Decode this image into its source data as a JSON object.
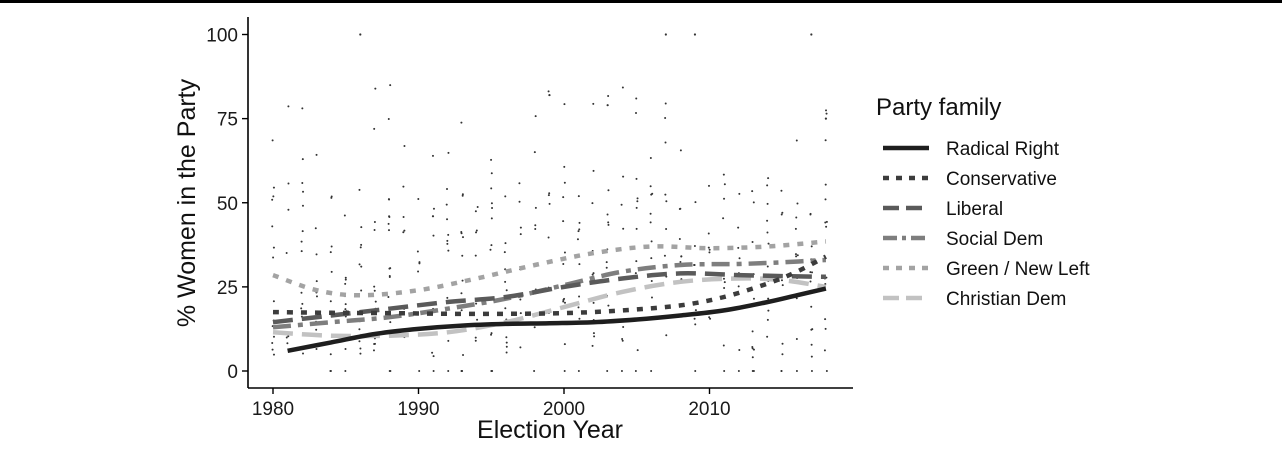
{
  "chart_data": {
    "type": "line",
    "title": "",
    "xlabel": "Election Year",
    "ylabel": "% Women in the Party",
    "xlim": [
      1977.8,
      1820.2
    ],
    "ylim": [
      -5,
      105
    ],
    "x_ticks": [
      1980,
      1990,
      2000,
      2010
    ],
    "y_ticks": [
      0,
      25,
      50,
      75,
      100
    ],
    "grid": false,
    "legend": {
      "title": "Party family",
      "placement": "right"
    },
    "series": [
      {
        "name": "Radical Right",
        "color": "#1e1e1e",
        "style": "solid",
        "x": [
          1981,
          1984,
          1987,
          1990,
          1993,
          1996,
          1999,
          2002,
          2005,
          2008,
          2011,
          2014,
          2016,
          2018
        ],
        "y": [
          6,
          8.5,
          11,
          12.5,
          13.5,
          14,
          14.2,
          14.5,
          15.3,
          16.5,
          18,
          20.5,
          22.5,
          24.5
        ]
      },
      {
        "name": "Conservative",
        "color": "#3c3c3c",
        "style": "dotted",
        "x": [
          1980,
          1984,
          1988,
          1992,
          1996,
          2000,
          2004,
          2008,
          2011,
          2014,
          2016,
          2018
        ],
        "y": [
          17.5,
          17.3,
          17.2,
          17,
          17,
          17.2,
          18,
          19.5,
          22,
          26,
          29.5,
          34
        ]
      },
      {
        "name": "Liberal",
        "color": "#5a5a5a",
        "style": "longdash",
        "x": [
          1980,
          1984,
          1988,
          1992,
          1996,
          2000,
          2004,
          2008,
          2012,
          2015,
          2018
        ],
        "y": [
          14.5,
          16.5,
          18.5,
          20.5,
          22,
          25,
          27.5,
          29,
          28.5,
          28.2,
          28
        ]
      },
      {
        "name": "Social Dem",
        "color": "#7e7e7e",
        "style": "dashdot",
        "x": [
          1980,
          1984,
          1988,
          1992,
          1996,
          2000,
          2004,
          2008,
          2012,
          2015,
          2018
        ],
        "y": [
          13,
          14.5,
          16,
          18.5,
          21.5,
          25.5,
          29.5,
          31.5,
          31.8,
          32.3,
          33
        ]
      },
      {
        "name": "Green / New Left",
        "color": "#a3a3a3",
        "style": "dotted",
        "x": [
          1980,
          1983,
          1986,
          1990,
          1994,
          1998,
          2002,
          2006,
          2010,
          2014,
          2018
        ],
        "y": [
          28.5,
          24,
          22.5,
          24,
          27.5,
          31.5,
          35,
          37,
          36.5,
          37,
          38.5
        ]
      },
      {
        "name": "Christian Dem",
        "color": "#c2c2c2",
        "style": "longdash",
        "x": [
          1980,
          1984,
          1988,
          1992,
          1996,
          2000,
          2004,
          2008,
          2012,
          2015,
          2018
        ],
        "y": [
          11.5,
          10.5,
          10.5,
          11.5,
          14.5,
          19,
          23.5,
          26.5,
          27.5,
          27,
          25
        ]
      }
    ]
  }
}
